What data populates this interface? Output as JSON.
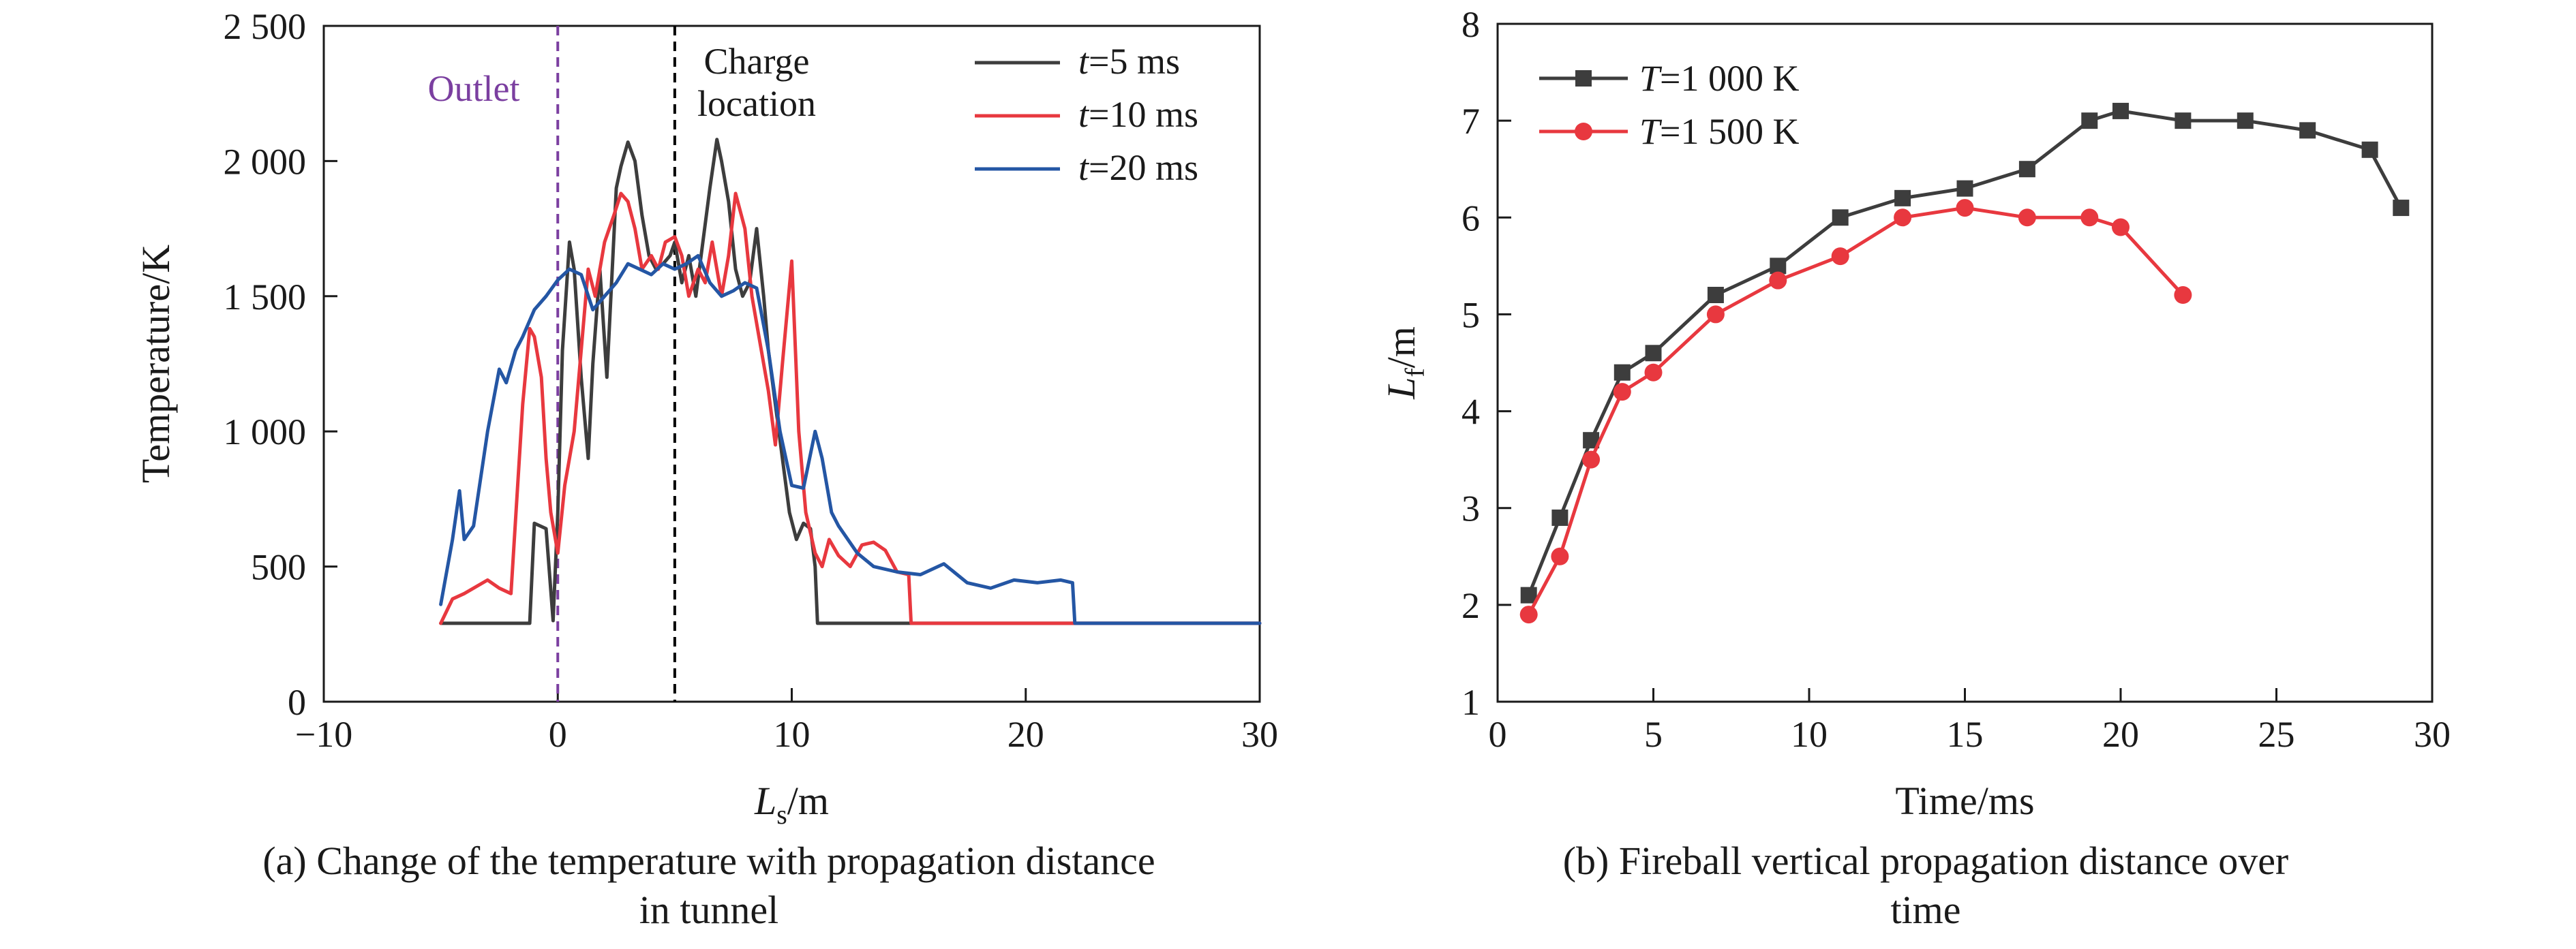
{
  "figure": {
    "caption_a": "(a) Change of the temperature with propagation distance in tunnel",
    "caption_b": "(b) Fireball vertical propagation distance over time"
  },
  "chart_data": [
    {
      "type": "line",
      "xlabel_main": "L",
      "xlabel_sub": "s",
      "xlabel_unit": "/m",
      "ylabel": "Temperature/K",
      "xlim": [
        -10,
        30
      ],
      "ylim": [
        0,
        2500
      ],
      "xticks": [
        -10,
        0,
        10,
        20,
        30
      ],
      "xtick_labels": [
        "−10",
        "0",
        "10",
        "20",
        "30"
      ],
      "yticks": [
        0,
        500,
        1000,
        1500,
        2000,
        2500
      ],
      "ytick_labels": [
        "0",
        "500",
        "1 000",
        "1 500",
        "2 000",
        "2 500"
      ],
      "grid": false,
      "legend_position": "top-right",
      "annotations": [
        {
          "text": "Outlet",
          "x": 0,
          "color": "#7b3fa0",
          "style": "dashed"
        },
        {
          "text_line1": "Charge",
          "text_line2": "location",
          "x": 5,
          "color": "#000000",
          "style": "dashed"
        }
      ],
      "series": [
        {
          "name": "t=5 ms",
          "name_italic": "t",
          "name_rest": "=5 ms",
          "color": "#3d3d3d",
          "x": [
            -5,
            -1.2,
            -1,
            -0.5,
            -0.2,
            0,
            0.2,
            0.5,
            0.7,
            1,
            1.3,
            1.5,
            1.8,
            2.1,
            2.5,
            2.7,
            3,
            3.3,
            3.6,
            3.9,
            4.2,
            4.5,
            4.8,
            5,
            5.3,
            5.6,
            5.9,
            6.2,
            6.5,
            6.8,
            7,
            7.3,
            7.6,
            7.9,
            8.2,
            8.5,
            8.8,
            9,
            9.3,
            9.6,
            9.9,
            10.2,
            10.5,
            10.8,
            11,
            11.1,
            11.3,
            15,
            30
          ],
          "y": [
            290,
            290,
            660,
            640,
            300,
            700,
            1300,
            1700,
            1600,
            1200,
            900,
            1250,
            1600,
            1200,
            1900,
            1980,
            2070,
            2000,
            1800,
            1650,
            1600,
            1620,
            1650,
            1700,
            1550,
            1650,
            1500,
            1700,
            1900,
            2080,
            2000,
            1850,
            1600,
            1500,
            1550,
            1750,
            1500,
            1300,
            1100,
            900,
            700,
            600,
            660,
            640,
            500,
            290,
            290,
            290,
            290
          ]
        },
        {
          "name": "t=10 ms",
          "name_italic": "t",
          "name_rest": "=10 ms",
          "color": "#e8383f",
          "x": [
            -5,
            -4.5,
            -4,
            -3,
            -2.5,
            -2,
            -1.5,
            -1.2,
            -1,
            -0.7,
            -0.5,
            -0.3,
            0,
            0.3,
            0.7,
            1,
            1.3,
            1.6,
            2,
            2.4,
            2.7,
            3,
            3.3,
            3.6,
            4,
            4.3,
            4.6,
            5,
            5.3,
            5.6,
            6,
            6.3,
            6.6,
            7,
            7.3,
            7.6,
            8,
            8.3,
            8.6,
            9,
            9.3,
            9.6,
            10,
            10.3,
            10.6,
            11,
            11.3,
            11.6,
            12,
            12.5,
            13,
            13.5,
            14,
            14.5,
            15,
            15.1,
            22,
            30
          ],
          "y": [
            290,
            380,
            400,
            450,
            420,
            400,
            1100,
            1380,
            1350,
            1200,
            900,
            700,
            550,
            800,
            1000,
            1300,
            1600,
            1500,
            1700,
            1800,
            1880,
            1850,
            1750,
            1600,
            1650,
            1600,
            1700,
            1720,
            1650,
            1500,
            1600,
            1550,
            1700,
            1500,
            1650,
            1880,
            1750,
            1500,
            1350,
            1150,
            950,
            1250,
            1630,
            1000,
            700,
            550,
            500,
            600,
            540,
            500,
            580,
            590,
            560,
            480,
            470,
            290,
            290,
            290
          ]
        },
        {
          "name": "t=20 ms",
          "name_italic": "t",
          "name_rest": "=20 ms",
          "color": "#2456a4",
          "x": [
            -5,
            -4.5,
            -4.2,
            -4,
            -3.6,
            -3,
            -2.5,
            -2.2,
            -1.8,
            -1.5,
            -1,
            -0.5,
            0,
            0.5,
            1,
            1.5,
            2,
            2.5,
            3,
            3.5,
            4,
            4.5,
            5,
            5.5,
            6,
            6.5,
            7,
            7.5,
            8,
            8.5,
            9,
            9.5,
            10,
            10.5,
            11,
            11.3,
            11.7,
            12,
            12.4,
            12.8,
            13.5,
            14.5,
            15.5,
            16.5,
            17.5,
            18.5,
            19.5,
            20.5,
            21.5,
            22,
            22.1,
            30
          ],
          "y": [
            360,
            600,
            780,
            600,
            650,
            1000,
            1230,
            1180,
            1300,
            1350,
            1450,
            1500,
            1560,
            1600,
            1580,
            1450,
            1500,
            1550,
            1620,
            1600,
            1580,
            1620,
            1600,
            1620,
            1650,
            1550,
            1500,
            1520,
            1550,
            1530,
            1300,
            1000,
            800,
            790,
            1000,
            900,
            700,
            650,
            600,
            550,
            500,
            480,
            470,
            510,
            440,
            420,
            450,
            440,
            450,
            440,
            290,
            290
          ]
        }
      ]
    },
    {
      "type": "line",
      "xlabel": "Time/ms",
      "ylabel_main": "L",
      "ylabel_sub": "f",
      "ylabel_unit": "/m",
      "xlim": [
        0,
        30
      ],
      "ylim": [
        1,
        8
      ],
      "xticks": [
        0,
        5,
        10,
        15,
        20,
        25,
        30
      ],
      "xtick_labels": [
        "0",
        "5",
        "10",
        "15",
        "20",
        "25",
        "30"
      ],
      "yticks": [
        1,
        2,
        3,
        4,
        5,
        6,
        7,
        8
      ],
      "ytick_labels": [
        "1",
        "2",
        "3",
        "4",
        "5",
        "6",
        "7",
        "8"
      ],
      "grid": false,
      "legend_position": "top-left",
      "series": [
        {
          "name": "T=1 000 K",
          "name_italic": "T",
          "name_rest": "=1 000 K",
          "color": "#3d3d3d",
          "marker": "square",
          "x": [
            1,
            2,
            3,
            4,
            5,
            7,
            9,
            11,
            13,
            15,
            17,
            19,
            20,
            22,
            24,
            26,
            28,
            29
          ],
          "y": [
            2.1,
            2.9,
            3.7,
            4.4,
            4.6,
            5.2,
            5.5,
            6.0,
            6.2,
            6.3,
            6.5,
            7.0,
            7.1,
            7.0,
            7.0,
            6.9,
            6.7,
            6.1
          ]
        },
        {
          "name": "T=1 500 K",
          "name_italic": "T",
          "name_rest": "=1 500 K",
          "color": "#e8383f",
          "marker": "circle",
          "x": [
            1,
            2,
            3,
            4,
            5,
            7,
            9,
            11,
            13,
            15,
            17,
            19,
            20,
            22
          ],
          "y": [
            1.9,
            2.5,
            3.5,
            4.2,
            4.4,
            5.0,
            5.35,
            5.6,
            6.0,
            6.1,
            6.0,
            6.0,
            5.9,
            5.2
          ]
        }
      ]
    }
  ]
}
